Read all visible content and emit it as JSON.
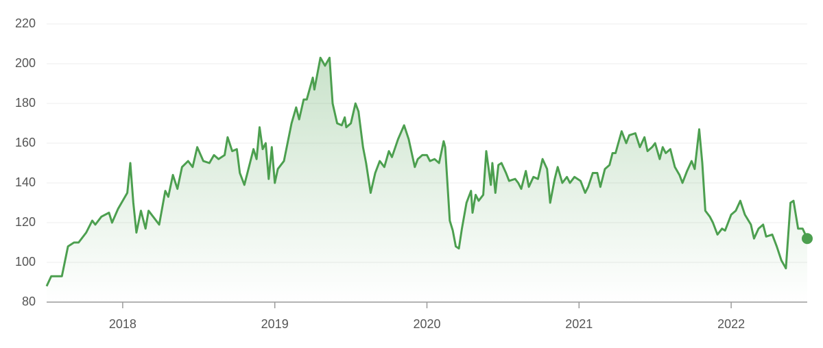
{
  "chart_data": {
    "type": "line",
    "x": [
      2017.5,
      2017.53,
      2017.6,
      2017.64,
      2017.68,
      2017.71,
      2017.76,
      2017.8,
      2017.82,
      2017.86,
      2017.91,
      2017.93,
      2017.97,
      2018.0,
      2018.03,
      2018.05,
      2018.07,
      2018.09,
      2018.12,
      2018.15,
      2018.17,
      2018.21,
      2018.24,
      2018.28,
      2018.3,
      2018.33,
      2018.36,
      2018.39,
      2018.43,
      2018.46,
      2018.49,
      2018.53,
      2018.57,
      2018.6,
      2018.63,
      2018.67,
      2018.69,
      2018.72,
      2018.75,
      2018.77,
      2018.8,
      2018.83,
      2018.86,
      2018.88,
      2018.9,
      2018.92,
      2018.94,
      2018.96,
      2018.98,
      2019.0,
      2019.02,
      2019.06,
      2019.11,
      2019.14,
      2019.16,
      2019.19,
      2019.21,
      2019.25,
      2019.26,
      2019.3,
      2019.33,
      2019.36,
      2019.38,
      2019.41,
      2019.44,
      2019.46,
      2019.47,
      2019.5,
      2019.53,
      2019.55,
      2019.58,
      2019.6,
      2019.63,
      2019.66,
      2019.69,
      2019.72,
      2019.75,
      2019.77,
      2019.81,
      2019.85,
      2019.88,
      2019.92,
      2019.94,
      2019.97,
      2020.0,
      2020.02,
      2020.05,
      2020.08,
      2020.11,
      2020.12,
      2020.15,
      2020.17,
      2020.19,
      2020.21,
      2020.23,
      2020.26,
      2020.29,
      2020.3,
      2020.32,
      2020.34,
      2020.37,
      2020.39,
      2020.42,
      2020.43,
      2020.45,
      2020.47,
      2020.49,
      2020.52,
      2020.54,
      2020.58,
      2020.6,
      2020.62,
      2020.65,
      2020.67,
      2020.7,
      2020.73,
      2020.76,
      2020.79,
      2020.81,
      2020.84,
      2020.86,
      2020.89,
      2020.92,
      2020.94,
      2020.97,
      2021.01,
      2021.04,
      2021.06,
      2021.09,
      2021.12,
      2021.14,
      2021.17,
      2021.2,
      2021.22,
      2021.24,
      2021.28,
      2021.31,
      2021.33,
      2021.37,
      2021.4,
      2021.43,
      2021.45,
      2021.48,
      2021.5,
      2021.53,
      2021.55,
      2021.57,
      2021.6,
      2021.63,
      2021.66,
      2021.68,
      2021.71,
      2021.74,
      2021.76,
      2021.79,
      2021.81,
      2021.83,
      2021.86,
      2021.88,
      2021.91,
      2021.94,
      2021.96,
      2022.0,
      2022.03,
      2022.06,
      2022.09,
      2022.13,
      2022.15,
      2022.18,
      2022.21,
      2022.23,
      2022.27,
      2022.3,
      2022.33,
      2022.36,
      2022.39,
      2022.41,
      2022.44,
      2022.47,
      2022.5
    ],
    "values": [
      88,
      93,
      93,
      108,
      110,
      110,
      115,
      121,
      119,
      123,
      125,
      120,
      127,
      131,
      135,
      150,
      130,
      115,
      126,
      117,
      126,
      122,
      119,
      136,
      133,
      144,
      137,
      148,
      151,
      148,
      158,
      151,
      150,
      154,
      152,
      154,
      163,
      156,
      157,
      145,
      139,
      148,
      157,
      152,
      168,
      157,
      160,
      142,
      158,
      140,
      147,
      151,
      170,
      178,
      172,
      182,
      182,
      193,
      187,
      203,
      199,
      203,
      180,
      170,
      169,
      173,
      168,
      170,
      180,
      176,
      158,
      150,
      135,
      145,
      151,
      148,
      156,
      153,
      162,
      169,
      162,
      148,
      152,
      154,
      154,
      151,
      152,
      150,
      161,
      158,
      121,
      116,
      108,
      107,
      117,
      130,
      136,
      125,
      134,
      131,
      134,
      156,
      139,
      150,
      135,
      149,
      150,
      145,
      141,
      142,
      140,
      137,
      146,
      138,
      143,
      142,
      152,
      147,
      130,
      142,
      148,
      140,
      143,
      140,
      143,
      141,
      135,
      138,
      145,
      145,
      138,
      147,
      149,
      155,
      155,
      166,
      160,
      164,
      165,
      158,
      163,
      156,
      158,
      160,
      152,
      158,
      155,
      157,
      148,
      144,
      140,
      146,
      151,
      147,
      167,
      150,
      126,
      123,
      120,
      114,
      117,
      116,
      124,
      126,
      131,
      124,
      119,
      112,
      117,
      119,
      113,
      114,
      108,
      101,
      97,
      130,
      131,
      117,
      117,
      112
    ],
    "color": "#4c9f4f",
    "xlim": [
      2017.5,
      2022.5
    ],
    "xticks": [
      2018,
      2019,
      2020,
      2021,
      2022
    ],
    "ylim": [
      80,
      220
    ],
    "yticks": [
      80,
      100,
      120,
      140,
      160,
      180,
      200,
      220
    ],
    "grid": true
  }
}
